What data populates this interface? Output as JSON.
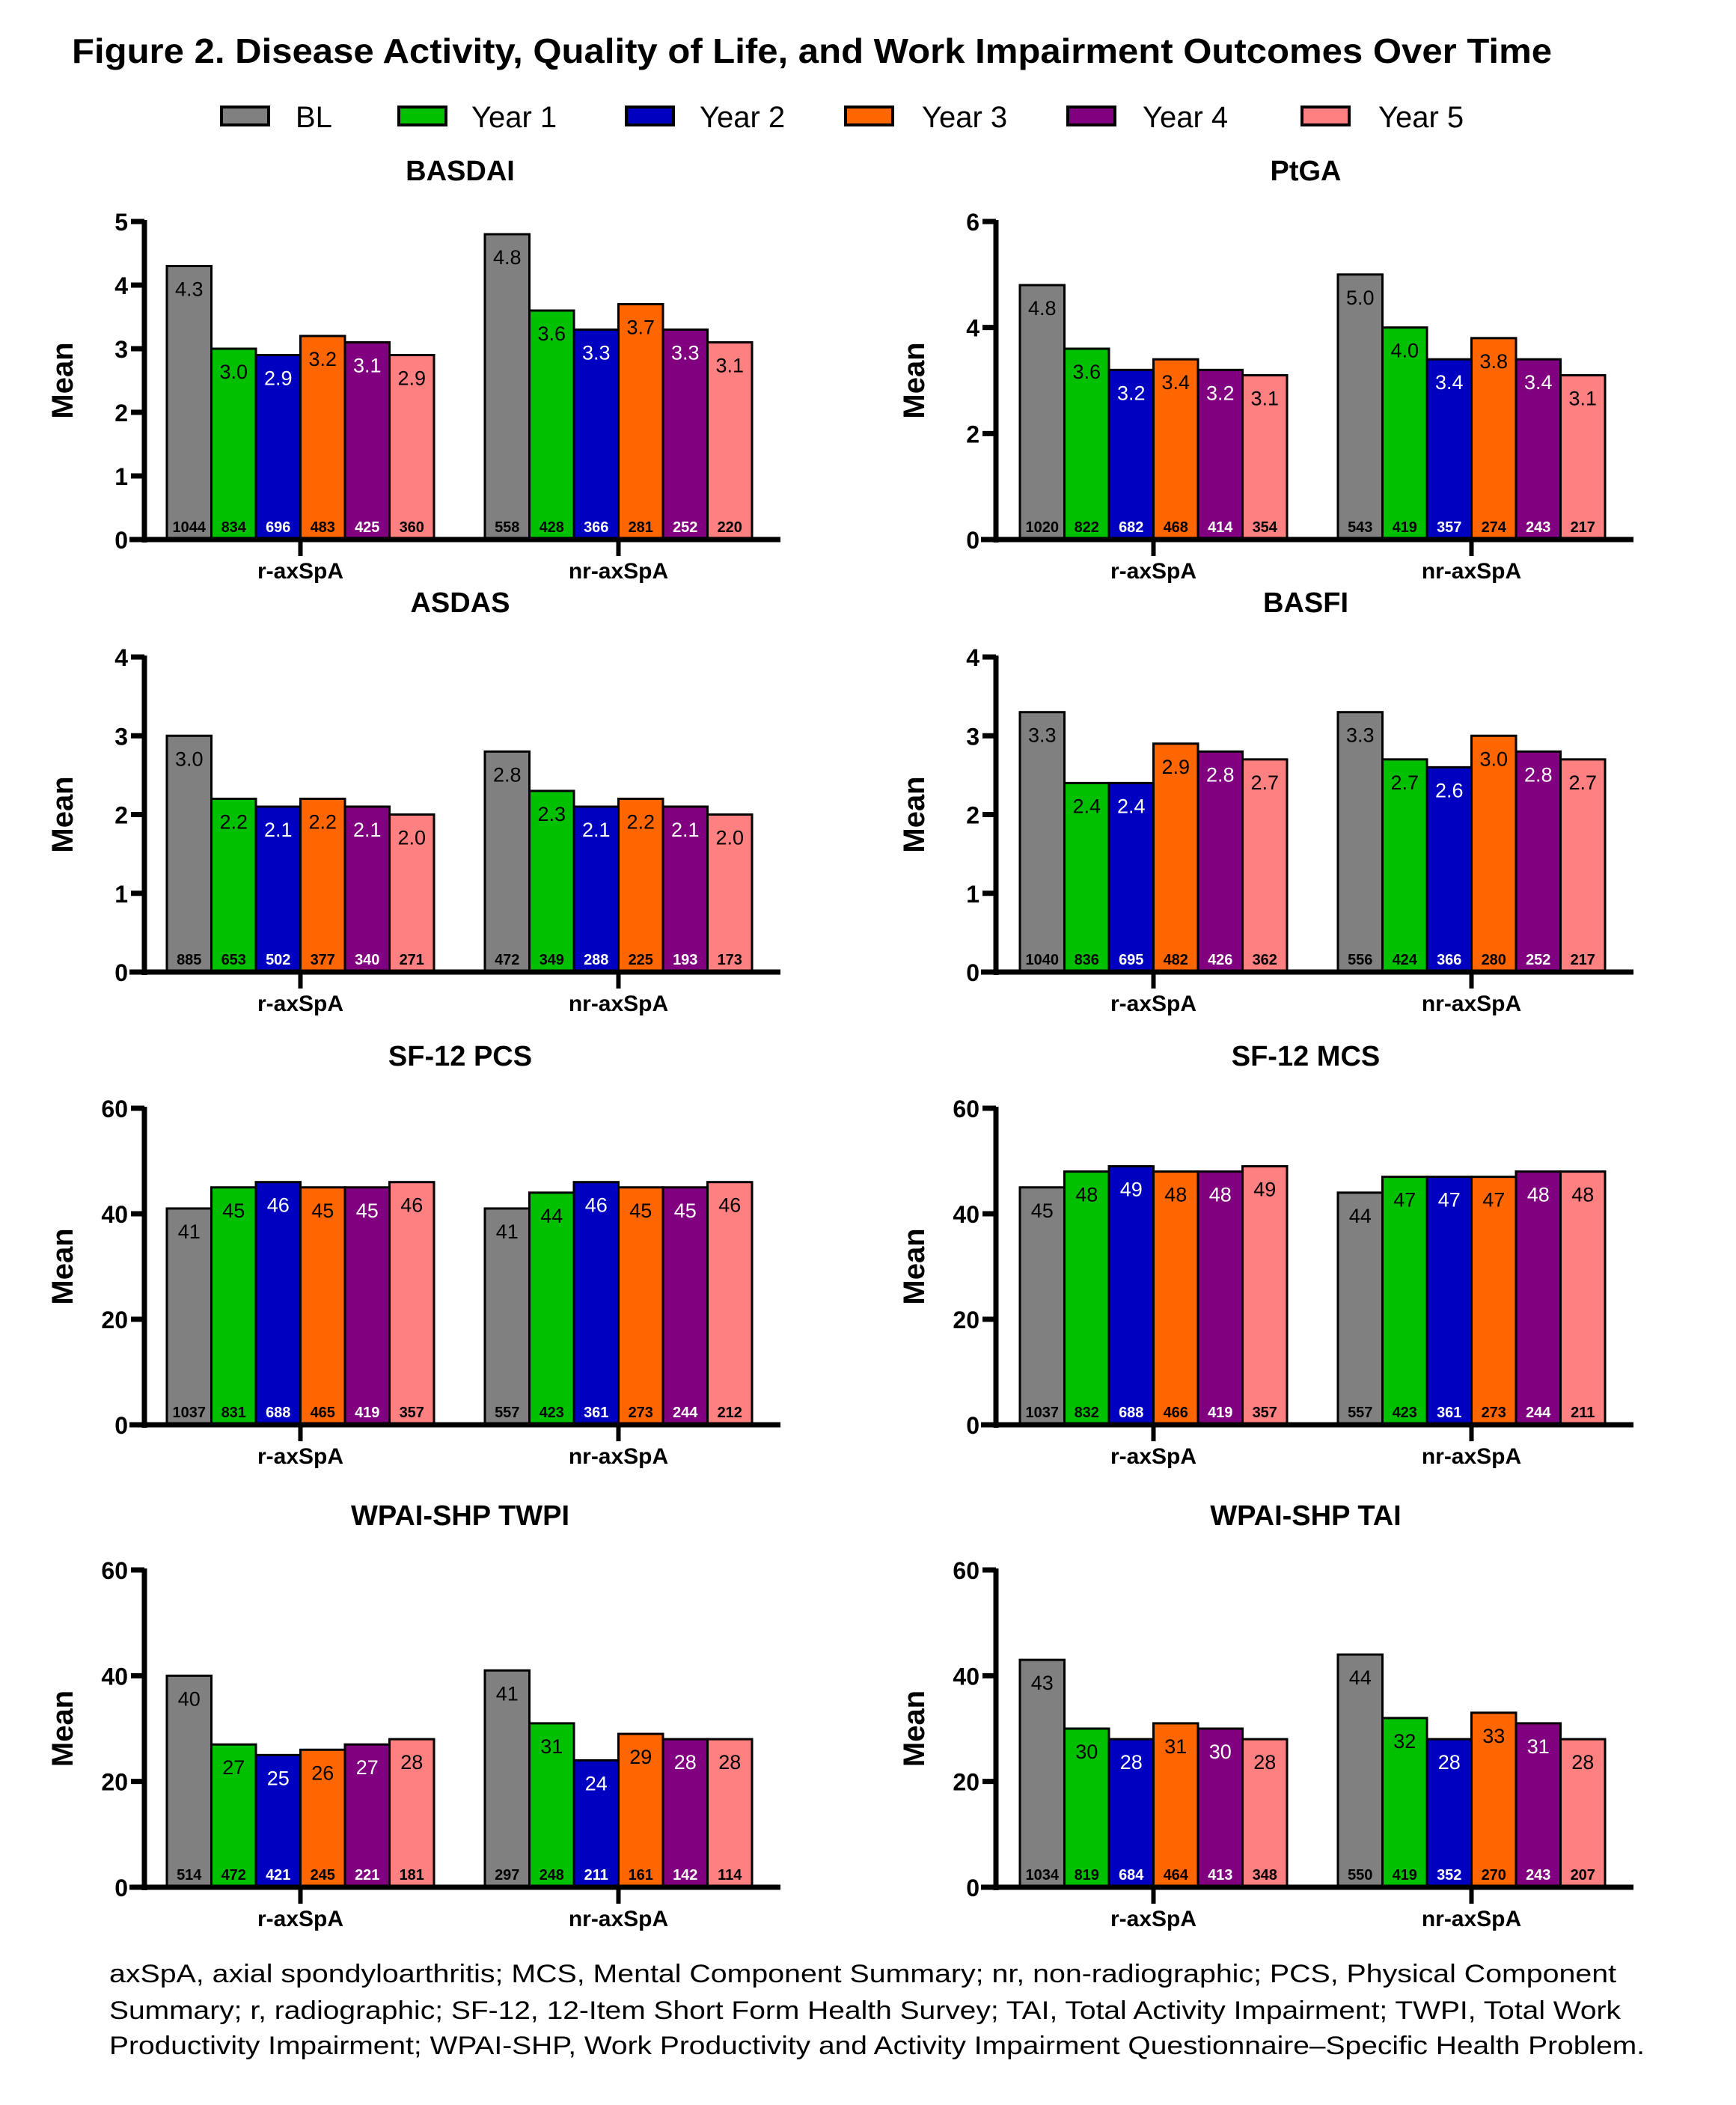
{
  "figure": {
    "title": "Figure 2. Disease Activity, Quality of Life, and Work Impairment Outcomes Over Time",
    "footnote_lines": [
      "axSpA, axial spondyloarthritis; MCS, Mental Component Summary;  nr, non-radiographic; PCS, Physical Component",
      "Summary; r, radiographic; SF-12, 12-Item Short Form Health Survey; TAI, Total Activity Impairment; TWPI, Total Work",
      "Productivity Impairment; WPAI-SHP, Work Productivity and Activity Impairment Questionnaire–Specific Health Problem."
    ]
  },
  "legend": {
    "placement": "top-center",
    "items": [
      {
        "label": "BL",
        "color": "#808080"
      },
      {
        "label": "Year 1",
        "color": "#00C000"
      },
      {
        "label": "Year 2",
        "color": "#0000C0"
      },
      {
        "label": "Year 3",
        "color": "#FF6600"
      },
      {
        "label": "Year 4",
        "color": "#800080"
      },
      {
        "label": "Year 5",
        "color": "#FF8080"
      }
    ]
  },
  "chart_data": [
    {
      "type": "bar",
      "title": "BASDAI",
      "xlabel": "",
      "ylabel": "Mean",
      "ylim": [
        0,
        5
      ],
      "yticks": [
        0,
        1,
        2,
        3,
        4,
        5
      ],
      "categories": [
        "r-axSpA",
        "nr-axSpA"
      ],
      "series": [
        {
          "name": "BL",
          "values": [
            4.3,
            4.8
          ],
          "n": [
            1044,
            558
          ]
        },
        {
          "name": "Year 1",
          "values": [
            3.0,
            3.6
          ],
          "n": [
            834,
            428
          ]
        },
        {
          "name": "Year 2",
          "values": [
            2.9,
            3.3
          ],
          "n": [
            696,
            366
          ]
        },
        {
          "name": "Year 3",
          "values": [
            3.2,
            3.7
          ],
          "n": [
            483,
            281
          ]
        },
        {
          "name": "Year 4",
          "values": [
            3.1,
            3.3
          ],
          "n": [
            425,
            252
          ]
        },
        {
          "name": "Year 5",
          "values": [
            2.9,
            3.1
          ],
          "n": [
            360,
            220
          ]
        }
      ]
    },
    {
      "type": "bar",
      "title": "PtGA",
      "xlabel": "",
      "ylabel": "Mean",
      "ylim": [
        0,
        6
      ],
      "yticks": [
        0,
        2,
        4,
        6
      ],
      "categories": [
        "r-axSpA",
        "nr-axSpA"
      ],
      "series": [
        {
          "name": "BL",
          "values": [
            4.8,
            5.0
          ],
          "n": [
            1020,
            543
          ]
        },
        {
          "name": "Year 1",
          "values": [
            3.6,
            4.0
          ],
          "n": [
            822,
            419
          ]
        },
        {
          "name": "Year 2",
          "values": [
            3.2,
            3.4
          ],
          "n": [
            682,
            357
          ]
        },
        {
          "name": "Year 3",
          "values": [
            3.4,
            3.8
          ],
          "n": [
            468,
            274
          ]
        },
        {
          "name": "Year 4",
          "values": [
            3.2,
            3.4
          ],
          "n": [
            414,
            243
          ]
        },
        {
          "name": "Year 5",
          "values": [
            3.1,
            3.1
          ],
          "n": [
            354,
            217
          ]
        }
      ]
    },
    {
      "type": "bar",
      "title": "ASDAS",
      "xlabel": "",
      "ylabel": "Mean",
      "ylim": [
        0,
        4
      ],
      "yticks": [
        0,
        1,
        2,
        3,
        4
      ],
      "categories": [
        "r-axSpA",
        "nr-axSpA"
      ],
      "series": [
        {
          "name": "BL",
          "values": [
            3.0,
            2.8
          ],
          "n": [
            885,
            472
          ]
        },
        {
          "name": "Year 1",
          "values": [
            2.2,
            2.3
          ],
          "n": [
            653,
            349
          ]
        },
        {
          "name": "Year 2",
          "values": [
            2.1,
            2.1
          ],
          "n": [
            502,
            288
          ]
        },
        {
          "name": "Year 3",
          "values": [
            2.2,
            2.2
          ],
          "n": [
            377,
            225
          ]
        },
        {
          "name": "Year 4",
          "values": [
            2.1,
            2.1
          ],
          "n": [
            340,
            193
          ]
        },
        {
          "name": "Year 5",
          "values": [
            2.0,
            2.0
          ],
          "n": [
            271,
            173
          ]
        }
      ]
    },
    {
      "type": "bar",
      "title": "BASFI",
      "xlabel": "",
      "ylabel": "Mean",
      "ylim": [
        0,
        4
      ],
      "yticks": [
        0,
        1,
        2,
        3,
        4
      ],
      "categories": [
        "r-axSpA",
        "nr-axSpA"
      ],
      "series": [
        {
          "name": "BL",
          "values": [
            3.3,
            3.3
          ],
          "n": [
            1040,
            556
          ]
        },
        {
          "name": "Year 1",
          "values": [
            2.4,
            2.7
          ],
          "n": [
            836,
            424
          ]
        },
        {
          "name": "Year 2",
          "values": [
            2.4,
            2.6
          ],
          "n": [
            695,
            366
          ]
        },
        {
          "name": "Year 3",
          "values": [
            2.9,
            3.0
          ],
          "n": [
            482,
            280
          ]
        },
        {
          "name": "Year 4",
          "values": [
            2.8,
            2.8
          ],
          "n": [
            426,
            252
          ]
        },
        {
          "name": "Year 5",
          "values": [
            2.7,
            2.7
          ],
          "n": [
            362,
            217
          ]
        }
      ]
    },
    {
      "type": "bar",
      "title": "SF-12 PCS",
      "xlabel": "",
      "ylabel": "Mean",
      "ylim": [
        0,
        60
      ],
      "yticks": [
        0,
        20,
        40,
        60
      ],
      "categories": [
        "r-axSpA",
        "nr-axSpA"
      ],
      "series": [
        {
          "name": "BL",
          "values": [
            41,
            41
          ],
          "n": [
            1037,
            557
          ]
        },
        {
          "name": "Year 1",
          "values": [
            45,
            44
          ],
          "n": [
            831,
            423
          ]
        },
        {
          "name": "Year 2",
          "values": [
            46,
            46
          ],
          "n": [
            688,
            361
          ]
        },
        {
          "name": "Year 3",
          "values": [
            45,
            45
          ],
          "n": [
            465,
            273
          ]
        },
        {
          "name": "Year 4",
          "values": [
            45,
            45
          ],
          "n": [
            419,
            244
          ]
        },
        {
          "name": "Year 5",
          "values": [
            46,
            46
          ],
          "n": [
            357,
            212
          ]
        }
      ]
    },
    {
      "type": "bar",
      "title": "SF-12 MCS",
      "xlabel": "",
      "ylabel": "Mean",
      "ylim": [
        0,
        60
      ],
      "yticks": [
        0,
        20,
        40,
        60
      ],
      "categories": [
        "r-axSpA",
        "nr-axSpA"
      ],
      "series": [
        {
          "name": "BL",
          "values": [
            45,
            44
          ],
          "n": [
            1037,
            557
          ]
        },
        {
          "name": "Year 1",
          "values": [
            48,
            47
          ],
          "n": [
            832,
            423
          ]
        },
        {
          "name": "Year 2",
          "values": [
            49,
            47
          ],
          "n": [
            688,
            361
          ]
        },
        {
          "name": "Year 3",
          "values": [
            48,
            47
          ],
          "n": [
            466,
            273
          ]
        },
        {
          "name": "Year 4",
          "values": [
            48,
            48
          ],
          "n": [
            419,
            244
          ]
        },
        {
          "name": "Year 5",
          "values": [
            49,
            48
          ],
          "n": [
            357,
            211
          ]
        }
      ]
    },
    {
      "type": "bar",
      "title": "WPAI-SHP TWPI",
      "xlabel": "",
      "ylabel": "Mean",
      "ylim": [
        0,
        60
      ],
      "yticks": [
        0,
        20,
        40,
        60
      ],
      "categories": [
        "r-axSpA",
        "nr-axSpA"
      ],
      "series": [
        {
          "name": "BL",
          "values": [
            40,
            41
          ],
          "n": [
            514,
            297
          ]
        },
        {
          "name": "Year 1",
          "values": [
            27,
            31
          ],
          "n": [
            472,
            248
          ]
        },
        {
          "name": "Year 2",
          "values": [
            25,
            24
          ],
          "n": [
            421,
            211
          ]
        },
        {
          "name": "Year 3",
          "values": [
            26,
            29
          ],
          "n": [
            245,
            161
          ]
        },
        {
          "name": "Year 4",
          "values": [
            27,
            28
          ],
          "n": [
            221,
            142
          ]
        },
        {
          "name": "Year 5",
          "values": [
            28,
            28
          ],
          "n": [
            181,
            114
          ]
        }
      ]
    },
    {
      "type": "bar",
      "title": "WPAI-SHP TAI",
      "xlabel": "",
      "ylabel": "Mean",
      "ylim": [
        0,
        60
      ],
      "yticks": [
        0,
        20,
        40,
        60
      ],
      "categories": [
        "r-axSpA",
        "nr-axSpA"
      ],
      "series": [
        {
          "name": "BL",
          "values": [
            43,
            44
          ],
          "n": [
            1034,
            550
          ]
        },
        {
          "name": "Year 1",
          "values": [
            30,
            32
          ],
          "n": [
            819,
            419
          ]
        },
        {
          "name": "Year 2",
          "values": [
            28,
            28
          ],
          "n": [
            684,
            352
          ]
        },
        {
          "name": "Year 3",
          "values": [
            31,
            33
          ],
          "n": [
            464,
            270
          ]
        },
        {
          "name": "Year 4",
          "values": [
            30,
            31
          ],
          "n": [
            413,
            243
          ]
        },
        {
          "name": "Year 5",
          "values": [
            28,
            28
          ],
          "n": [
            348,
            207
          ]
        }
      ]
    }
  ]
}
